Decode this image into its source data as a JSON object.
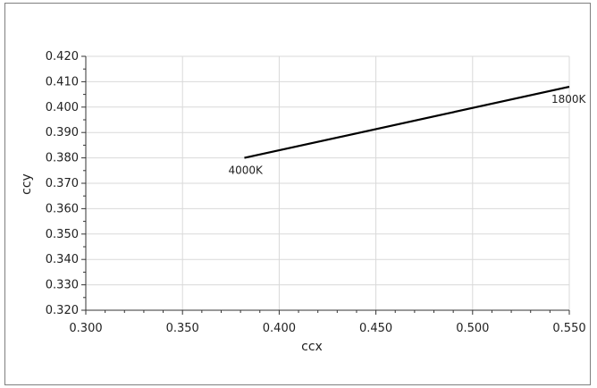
{
  "chart_data": {
    "type": "line",
    "title": "",
    "xlabel": "ccx",
    "ylabel": "ccy",
    "xlim": [
      0.3,
      0.55
    ],
    "ylim": [
      0.32,
      0.42
    ],
    "xticks": [
      "0.300",
      "0.350",
      "0.400",
      "0.450",
      "0.500",
      "0.550"
    ],
    "yticks": [
      "0.320",
      "0.330",
      "0.340",
      "0.350",
      "0.360",
      "0.370",
      "0.380",
      "0.390",
      "0.400",
      "0.410",
      "0.420"
    ],
    "grid": true,
    "legend": "none",
    "series": [
      {
        "color": "#000000",
        "x": [
          0.382,
          0.55
        ],
        "y": [
          0.38,
          0.408
        ]
      }
    ],
    "annotations": [
      {
        "text": "4000K",
        "x": 0.382,
        "y": 0.38
      },
      {
        "text": "1800K",
        "x": 0.55,
        "y": 0.408
      }
    ]
  }
}
